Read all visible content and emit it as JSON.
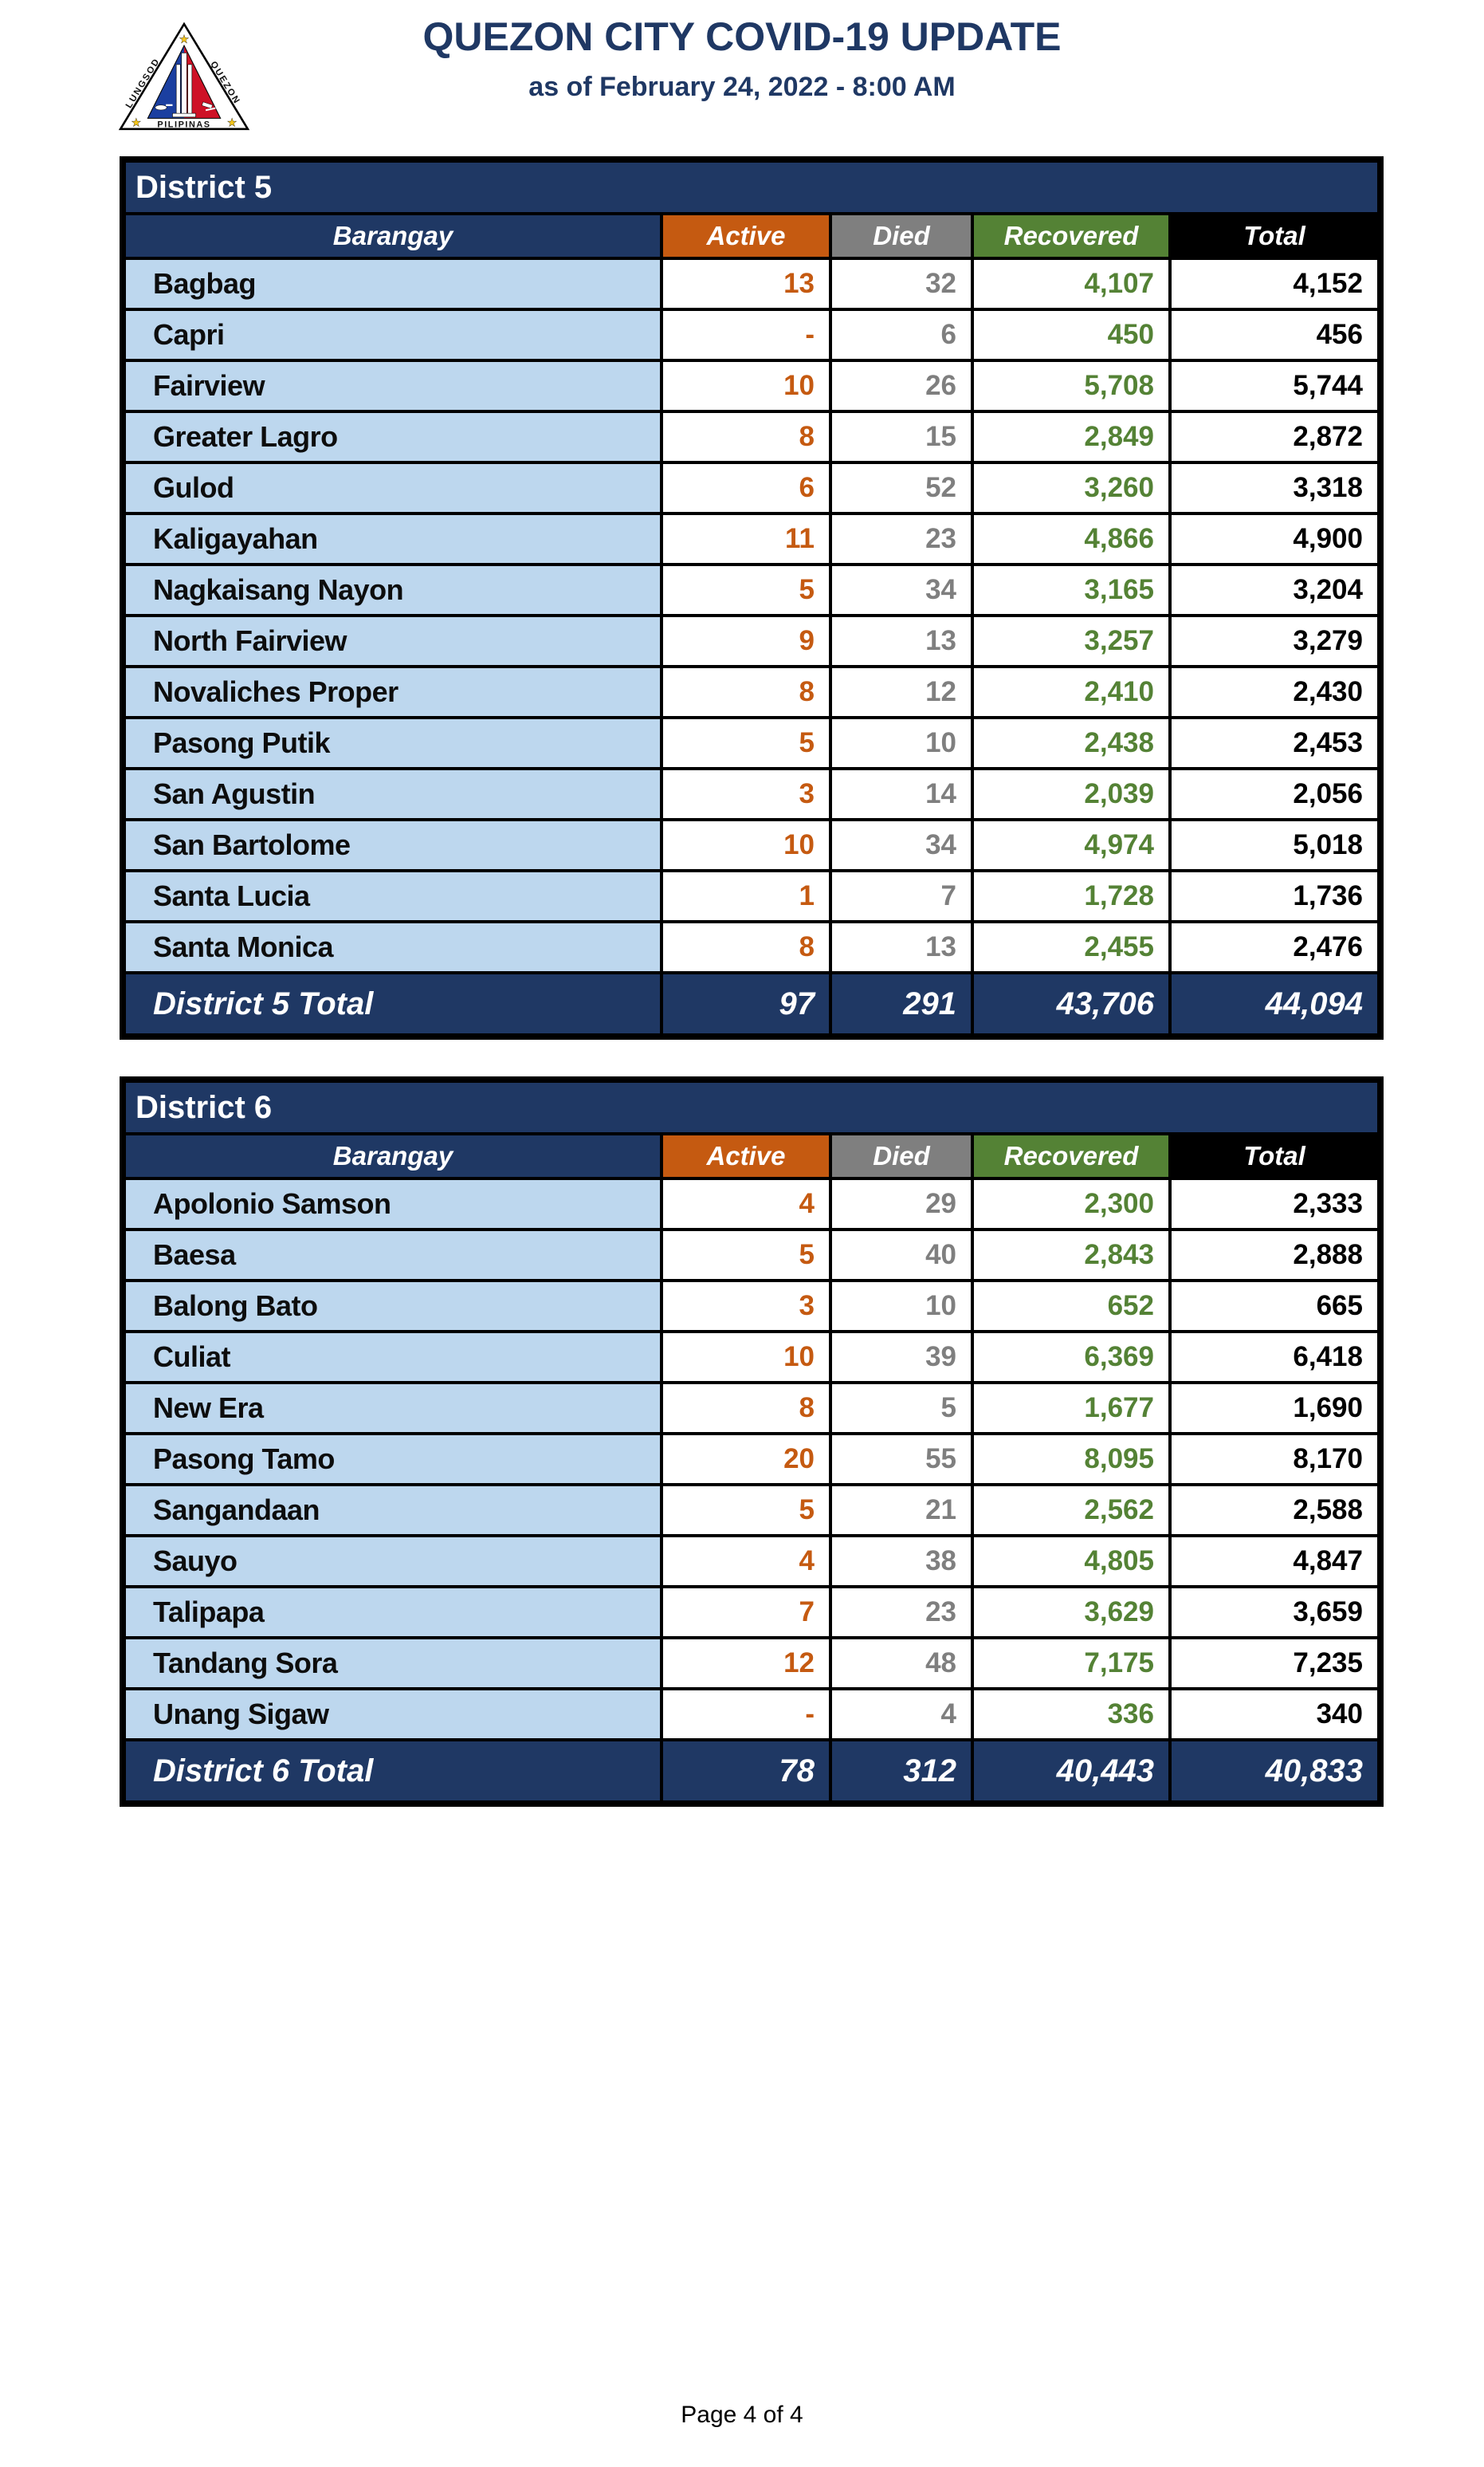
{
  "header": {
    "title": "QUEZON CITY COVID-19 UPDATE",
    "subtitle": "as of February 24, 2022 - 8:00 AM",
    "logo": {
      "name": "quezon-city-seal",
      "text_left": "LUNGSOD",
      "text_right": "QUEZON",
      "text_bottom": "PILIPINAS"
    }
  },
  "columns": [
    "Barangay",
    "Active",
    "Died",
    "Recovered",
    "Total"
  ],
  "colors": {
    "navy": "#1F3864",
    "light_blue": "#BDD7EE",
    "orange": "#C55A11",
    "gray": "#7F7F7F",
    "green": "#548235",
    "black": "#000000",
    "title_blue": "#1F3864"
  },
  "tables": [
    {
      "district": "District 5",
      "rows": [
        {
          "name": "Bagbag",
          "active": "13",
          "died": "32",
          "recovered": "4,107",
          "total": "4,152"
        },
        {
          "name": "Capri",
          "active": "-",
          "died": "6",
          "recovered": "450",
          "total": "456"
        },
        {
          "name": "Fairview",
          "active": "10",
          "died": "26",
          "recovered": "5,708",
          "total": "5,744"
        },
        {
          "name": "Greater Lagro",
          "active": "8",
          "died": "15",
          "recovered": "2,849",
          "total": "2,872"
        },
        {
          "name": "Gulod",
          "active": "6",
          "died": "52",
          "recovered": "3,260",
          "total": "3,318"
        },
        {
          "name": "Kaligayahan",
          "active": "11",
          "died": "23",
          "recovered": "4,866",
          "total": "4,900"
        },
        {
          "name": "Nagkaisang Nayon",
          "active": "5",
          "died": "34",
          "recovered": "3,165",
          "total": "3,204"
        },
        {
          "name": "North Fairview",
          "active": "9",
          "died": "13",
          "recovered": "3,257",
          "total": "3,279"
        },
        {
          "name": "Novaliches Proper",
          "active": "8",
          "died": "12",
          "recovered": "2,410",
          "total": "2,430"
        },
        {
          "name": "Pasong Putik",
          "active": "5",
          "died": "10",
          "recovered": "2,438",
          "total": "2,453"
        },
        {
          "name": "San Agustin",
          "active": "3",
          "died": "14",
          "recovered": "2,039",
          "total": "2,056"
        },
        {
          "name": "San Bartolome",
          "active": "10",
          "died": "34",
          "recovered": "4,974",
          "total": "5,018"
        },
        {
          "name": "Santa Lucia",
          "active": "1",
          "died": "7",
          "recovered": "1,728",
          "total": "1,736"
        },
        {
          "name": "Santa Monica",
          "active": "8",
          "died": "13",
          "recovered": "2,455",
          "total": "2,476"
        }
      ],
      "total": {
        "label": "District 5 Total",
        "active": "97",
        "died": "291",
        "recovered": "43,706",
        "total": "44,094"
      }
    },
    {
      "district": "District 6",
      "rows": [
        {
          "name": "Apolonio Samson",
          "active": "4",
          "died": "29",
          "recovered": "2,300",
          "total": "2,333"
        },
        {
          "name": "Baesa",
          "active": "5",
          "died": "40",
          "recovered": "2,843",
          "total": "2,888"
        },
        {
          "name": "Balong Bato",
          "active": "3",
          "died": "10",
          "recovered": "652",
          "total": "665"
        },
        {
          "name": "Culiat",
          "active": "10",
          "died": "39",
          "recovered": "6,369",
          "total": "6,418"
        },
        {
          "name": "New Era",
          "active": "8",
          "died": "5",
          "recovered": "1,677",
          "total": "1,690"
        },
        {
          "name": "Pasong Tamo",
          "active": "20",
          "died": "55",
          "recovered": "8,095",
          "total": "8,170"
        },
        {
          "name": "Sangandaan",
          "active": "5",
          "died": "21",
          "recovered": "2,562",
          "total": "2,588"
        },
        {
          "name": "Sauyo",
          "active": "4",
          "died": "38",
          "recovered": "4,805",
          "total": "4,847"
        },
        {
          "name": "Talipapa",
          "active": "7",
          "died": "23",
          "recovered": "3,629",
          "total": "3,659"
        },
        {
          "name": "Tandang Sora",
          "active": "12",
          "died": "48",
          "recovered": "7,175",
          "total": "7,235"
        },
        {
          "name": "Unang Sigaw",
          "active": "-",
          "died": "4",
          "recovered": "336",
          "total": "340"
        }
      ],
      "total": {
        "label": "District 6 Total",
        "active": "78",
        "died": "312",
        "recovered": "40,443",
        "total": "40,833"
      }
    }
  ],
  "footer": {
    "page_label": "Page 4 of 4"
  }
}
